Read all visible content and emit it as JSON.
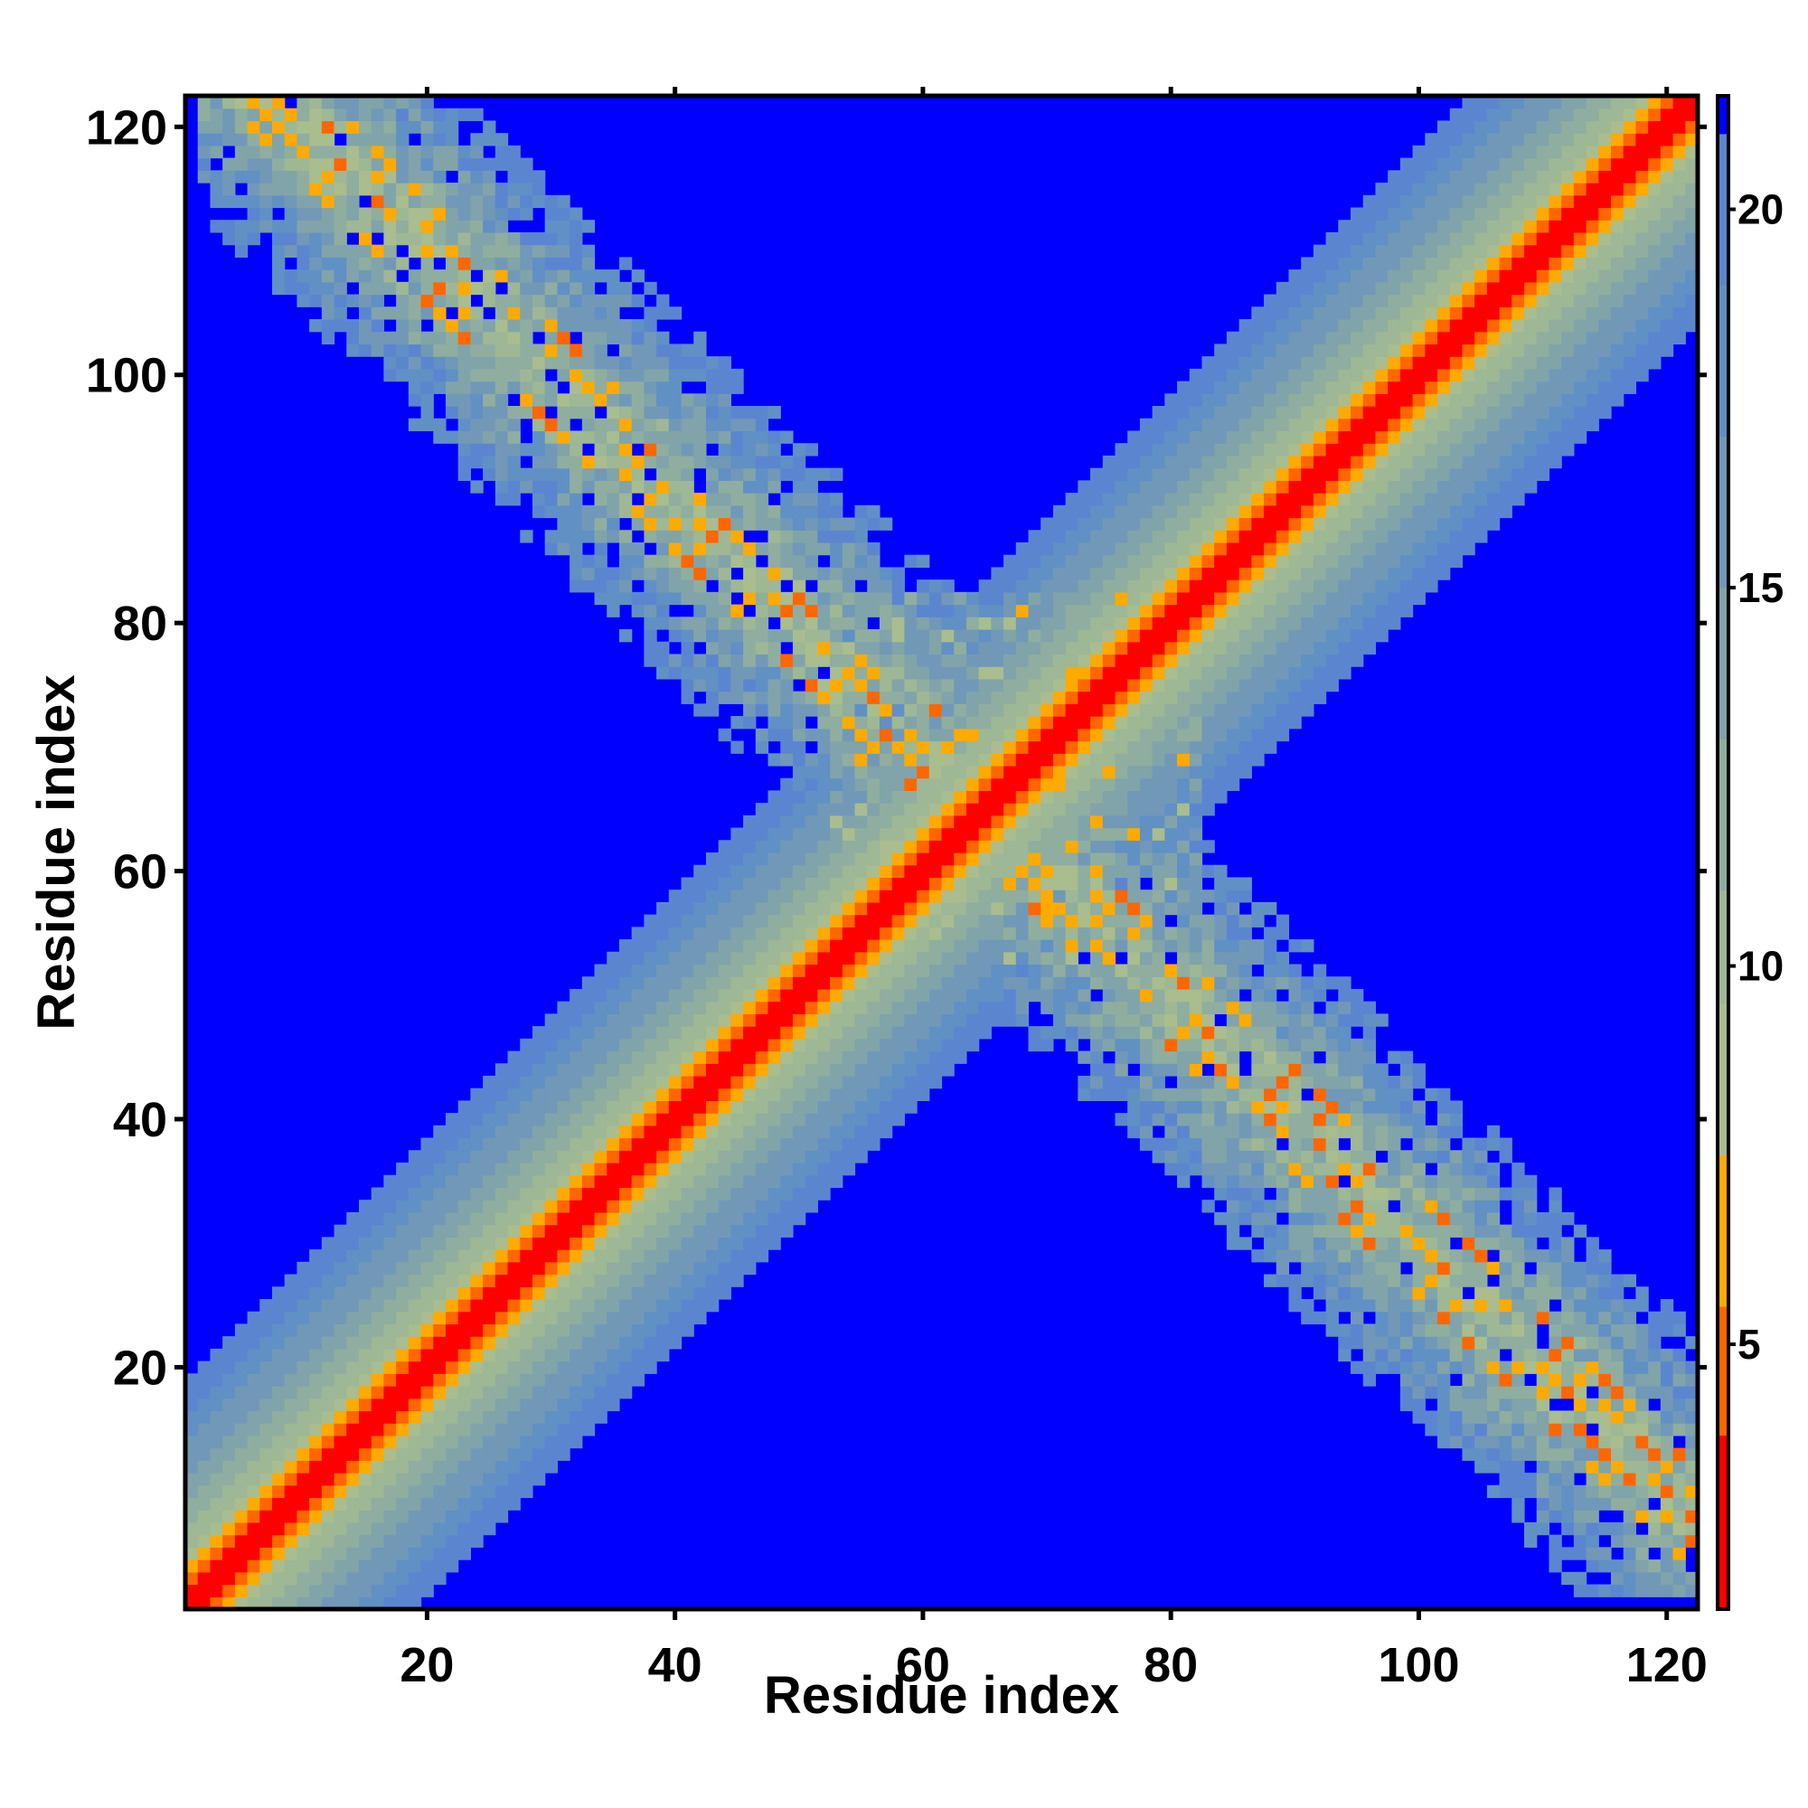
{
  "chart_data": {
    "type": "heatmap",
    "title": "",
    "xlabel": "Residue index",
    "ylabel": "Residue index",
    "n_residues": 122,
    "xlim": [
      1,
      122
    ],
    "ylim": [
      1,
      122
    ],
    "x_ticks": [
      20,
      40,
      60,
      80,
      100,
      120
    ],
    "y_ticks": [
      20,
      40,
      60,
      80,
      100,
      120
    ],
    "colorbar": {
      "ticks": [
        5,
        10,
        15,
        20
      ],
      "range": [
        1.5,
        21.5
      ],
      "placement": "right"
    },
    "color_scale": [
      {
        "max": 3.8,
        "color": "#ff0000"
      },
      {
        "max": 5.5,
        "color": "#ff6600"
      },
      {
        "max": 7.5,
        "color": "#ffaa00"
      },
      {
        "max": 9.5,
        "color": "#a9bd8e"
      },
      {
        "max": 11.0,
        "color": "#9eb795"
      },
      {
        "max": 13.0,
        "color": "#8fae9f"
      },
      {
        "max": 15.0,
        "color": "#80a4a9"
      },
      {
        "max": 17.0,
        "color": "#7199b7"
      },
      {
        "max": 19.0,
        "color": "#6190c4"
      },
      {
        "max": 21.0,
        "color": "#5b86cf"
      },
      {
        "max": 999,
        "color": "#0000ff"
      }
    ],
    "background_color": "#0000ff",
    "structure": {
      "diagonal": "distance grows with |i-j|, red/orange core up to ~7 residues, band out to ~20",
      "anti_diagonal_contacts": "strand pairing along i + j ≈ 130, with contacts spanning residues ~2–75 vs ~55–122",
      "center_cluster": "scattered contacts around residues 55–80"
    }
  }
}
